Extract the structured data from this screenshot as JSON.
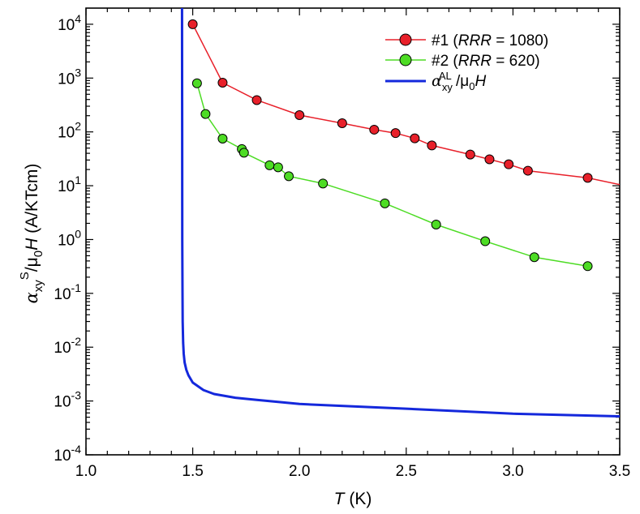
{
  "chart_data": {
    "type": "scatter",
    "title": "",
    "xlabel": {
      "italic": "T",
      "rest": " (K)"
    },
    "ylabel": {
      "alpha": "α",
      "xy": "xy",
      "S": "S",
      "mu": "/μ",
      "zero": "0",
      "H": "H",
      "unit": " (A/KTcm)"
    },
    "xlim": [
      1.0,
      3.5
    ],
    "ylim_log10": [
      -4,
      4.3
    ],
    "yscale": "log",
    "x_ticks": [
      1.0,
      1.5,
      2.0,
      2.5,
      3.0,
      3.5
    ],
    "x_tick_labels": [
      "1.0",
      "1.5",
      "2.0",
      "2.5",
      "3.0",
      "3.5"
    ],
    "y_tick_exponents": [
      -4,
      -3,
      -2,
      -1,
      0,
      1,
      2,
      3,
      4
    ],
    "y_tick_base": "10",
    "grid": false,
    "legend_position": "top-right",
    "series": [
      {
        "name": "#1 (RRR = 1080)",
        "label_prefix": "#1 (",
        "label_italic": "RRR",
        "label_suffix": " = 1080)",
        "color": "#e8202a",
        "marker": "circle",
        "x": [
          1.5,
          1.64,
          1.8,
          2.0,
          2.2,
          2.35,
          2.45,
          2.54,
          2.62,
          2.8,
          2.89,
          2.98,
          3.07,
          3.35,
          3.5
        ],
        "y": [
          10000,
          820,
          390,
          205,
          145,
          110,
          95,
          76,
          56,
          38,
          31,
          25,
          19,
          14,
          10.5
        ],
        "markers": [
          true,
          true,
          true,
          true,
          true,
          true,
          true,
          true,
          true,
          true,
          true,
          true,
          true,
          true,
          false
        ]
      },
      {
        "name": "#2 (RRR = 620)",
        "label_prefix": "#2 (",
        "label_italic": "RRR",
        "label_suffix": " = 620)",
        "color": "#4ddc24",
        "marker": "circle",
        "x": [
          1.52,
          1.56,
          1.64,
          1.73,
          1.74,
          1.86,
          1.9,
          1.95,
          2.11,
          2.4,
          2.64,
          2.87,
          3.1,
          3.35
        ],
        "y": [
          800,
          215,
          75,
          48,
          41,
          24,
          22,
          15,
          11,
          4.7,
          1.9,
          0.93,
          0.47,
          0.32
        ],
        "markers": [
          true,
          true,
          true,
          true,
          true,
          true,
          true,
          true,
          true,
          true,
          true,
          true,
          true,
          true
        ]
      },
      {
        "name": "αxy AL /μ0H",
        "label_alpha": "α",
        "label_sub": "xy",
        "label_sup": "AL",
        "label_mu": " /μ",
        "label_zero": "0",
        "label_H": "H",
        "color": "#1428dc",
        "marker": "none",
        "x": [
          1.45,
          1.4506,
          1.451,
          1.452,
          1.453,
          1.455,
          1.458,
          1.462,
          1.47,
          1.48,
          1.5,
          1.55,
          1.6,
          1.7,
          1.8,
          2.0,
          2.5,
          3.0,
          3.5
        ],
        "y": [
          20000,
          100,
          1,
          0.1,
          0.03,
          0.012,
          0.0075,
          0.0052,
          0.0038,
          0.003,
          0.0022,
          0.0016,
          0.00135,
          0.00115,
          0.00105,
          0.00088,
          0.00072,
          0.00058,
          0.00052
        ]
      }
    ]
  }
}
